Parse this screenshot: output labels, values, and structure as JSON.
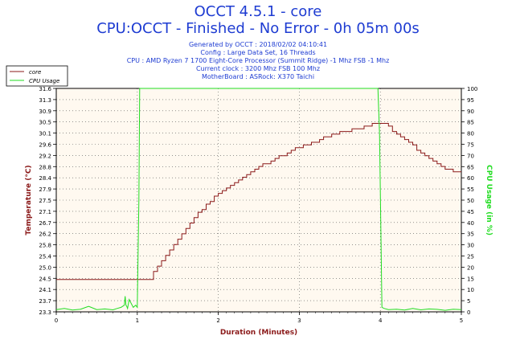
{
  "title": "OCCT 4.5.1 - core",
  "subtitle": "CPU:OCCT - Finished - No Error - 0h 05m 00s",
  "info_lines": [
    "Generated by OCCT : 2018/02/02 04:10:41",
    "Config : Large Data Set, 16 Threads",
    "CPU : AMD Ryzen 7 1700 Eight-Core Processor (Summit Ridge) -1 Mhz FSB -1 Mhz",
    "Current clock : 3200 Mhz FSB 100 Mhz",
    "MotherBoard : ASRock: X370 Taichi"
  ],
  "colors": {
    "title": "#1e3cd2",
    "core": "#8b1a1a",
    "cpu": "#22dd22",
    "grid": "#555555"
  },
  "chart_data": {
    "type": "line",
    "xlabel": "Duration (Minutes)",
    "ylabel_left": "Temperature (°C)",
    "ylabel_right": "CPU Usage (in %)",
    "xlim": [
      0,
      5
    ],
    "ylim_left": [
      23.3,
      31.6
    ],
    "ylim_right": [
      0,
      100
    ],
    "x_ticks": [
      "0",
      "1",
      "2",
      "3",
      "4",
      "5"
    ],
    "y_left_ticks": [
      "23.3",
      "23.7",
      "24.1",
      "24.5",
      "25.0",
      "25.4",
      "25.8",
      "26.2",
      "26.7",
      "27.1",
      "27.5",
      "27.9",
      "28.4",
      "28.8",
      "29.2",
      "29.6",
      "30.1",
      "30.5",
      "30.9",
      "31.3",
      "31.6"
    ],
    "y_right_ticks": [
      "0",
      "5",
      "10",
      "15",
      "20",
      "25",
      "30",
      "35",
      "40",
      "45",
      "50",
      "55",
      "60",
      "65",
      "70",
      "75",
      "80",
      "85",
      "90",
      "95",
      "100"
    ],
    "grid": true,
    "legend_position": "top-left",
    "series": [
      {
        "name": "core",
        "axis": "left",
        "x": [
          0.0,
          1.17,
          1.2,
          1.25,
          1.3,
          1.35,
          1.4,
          1.45,
          1.5,
          1.55,
          1.6,
          1.65,
          1.7,
          1.75,
          1.8,
          1.85,
          1.9,
          1.95,
          2.0,
          2.05,
          2.1,
          2.15,
          2.2,
          2.25,
          2.3,
          2.35,
          2.4,
          2.45,
          2.5,
          2.55,
          2.6,
          2.65,
          2.7,
          2.75,
          2.8,
          2.85,
          2.9,
          2.95,
          3.0,
          3.05,
          3.1,
          3.15,
          3.2,
          3.25,
          3.3,
          3.35,
          3.4,
          3.45,
          3.5,
          3.55,
          3.6,
          3.65,
          3.7,
          3.75,
          3.8,
          3.85,
          3.9,
          3.95,
          4.0,
          4.05,
          4.1,
          4.15,
          4.2,
          4.25,
          4.3,
          4.35,
          4.4,
          4.45,
          4.5,
          4.55,
          4.6,
          4.65,
          4.7,
          4.75,
          4.8,
          4.85,
          4.9,
          4.95,
          5.0
        ],
        "values": [
          24.5,
          24.5,
          24.8,
          25.0,
          25.2,
          25.4,
          25.6,
          25.8,
          26.0,
          26.2,
          26.4,
          26.6,
          26.8,
          27.0,
          27.1,
          27.3,
          27.4,
          27.6,
          27.7,
          27.8,
          27.9,
          28.0,
          28.1,
          28.2,
          28.3,
          28.4,
          28.5,
          28.6,
          28.7,
          28.8,
          28.8,
          28.9,
          29.0,
          29.1,
          29.1,
          29.2,
          29.3,
          29.4,
          29.4,
          29.5,
          29.5,
          29.6,
          29.6,
          29.7,
          29.8,
          29.8,
          29.9,
          29.9,
          30.0,
          30.0,
          30.0,
          30.1,
          30.1,
          30.1,
          30.2,
          30.2,
          30.3,
          30.3,
          30.3,
          30.3,
          30.2,
          30.0,
          29.9,
          29.8,
          29.7,
          29.6,
          29.5,
          29.3,
          29.2,
          29.1,
          29.0,
          28.9,
          28.8,
          28.7,
          28.6,
          28.6,
          28.5,
          28.5,
          28.5
        ]
      },
      {
        "name": "CPU Usage",
        "axis": "right",
        "x": [
          0.0,
          0.1,
          0.2,
          0.3,
          0.4,
          0.5,
          0.6,
          0.7,
          0.75,
          0.8,
          0.84,
          0.85,
          0.86,
          0.87,
          0.88,
          0.9,
          0.95,
          0.98,
          1.0,
          1.02,
          1.03,
          3.97,
          3.99,
          4.02,
          4.05,
          4.1,
          4.2,
          4.3,
          4.4,
          4.5,
          4.6,
          4.7,
          4.8,
          4.9,
          5.0
        ],
        "values": [
          1,
          1.5,
          0.8,
          1.2,
          2.5,
          1,
          1.3,
          0.9,
          1.5,
          2,
          3,
          7,
          3,
          2.5,
          1.5,
          5.5,
          2,
          3,
          2,
          50,
          100,
          100,
          80,
          2,
          1.5,
          1,
          1.2,
          0.8,
          1.5,
          0.9,
          1.3,
          1.1,
          0.7,
          1.2,
          1
        ]
      }
    ]
  }
}
